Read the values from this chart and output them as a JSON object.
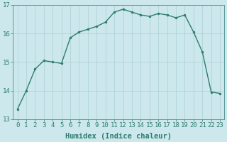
{
  "x": [
    0,
    1,
    2,
    3,
    4,
    5,
    6,
    7,
    8,
    9,
    10,
    11,
    12,
    13,
    14,
    15,
    16,
    17,
    18,
    19,
    20,
    21,
    22,
    23
  ],
  "y": [
    13.35,
    14.0,
    14.75,
    15.05,
    15.0,
    14.95,
    15.85,
    16.05,
    16.15,
    16.25,
    16.4,
    16.75,
    16.85,
    16.75,
    16.65,
    16.6,
    16.7,
    16.65,
    16.55,
    16.65,
    16.05,
    15.35,
    13.95,
    13.9
  ],
  "line_color": "#2e7d6e",
  "marker": "o",
  "marker_size": 2.0,
  "line_width": 1.0,
  "bg_color": "#cce8ec",
  "grid_color": "#aacfd4",
  "xlabel": "Humidex (Indice chaleur)",
  "xlabel_fontsize": 7.5,
  "tick_fontsize": 6.5,
  "ylim": [
    13,
    17
  ],
  "xlim": [
    -0.5,
    23.5
  ],
  "yticks": [
    13,
    14,
    15,
    16,
    17
  ],
  "xticks": [
    0,
    1,
    2,
    3,
    4,
    5,
    6,
    7,
    8,
    9,
    10,
    11,
    12,
    13,
    14,
    15,
    16,
    17,
    18,
    19,
    20,
    21,
    22,
    23
  ],
  "spine_color": "#5a9a9a",
  "tick_color": "#2e7d6e"
}
